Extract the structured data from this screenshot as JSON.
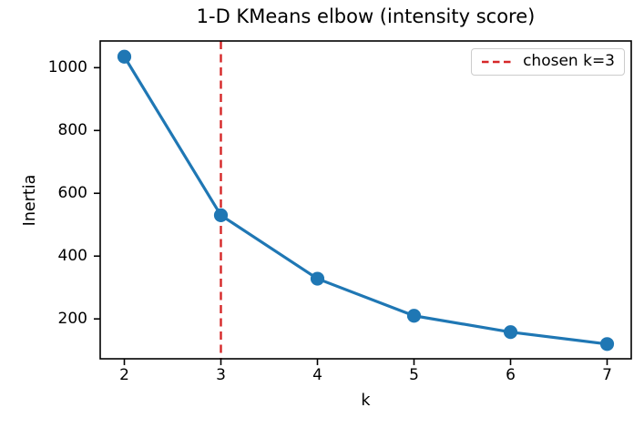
{
  "title": "1-D KMeans elbow (intensity score)",
  "colors": {
    "line": "#1f77b4",
    "vline": "#d62728",
    "spine": "#000000",
    "background": "#ffffff",
    "legend_border": "#cccccc"
  },
  "legend": {
    "label": "chosen k=3"
  },
  "chart_data": {
    "type": "line",
    "title": "1-D KMeans elbow (intensity score)",
    "xlabel": "k",
    "ylabel": "Inertia",
    "x": [
      2,
      3,
      4,
      5,
      6,
      7
    ],
    "series": [
      {
        "name": "inertia",
        "values": [
          1035,
          530,
          328,
          210,
          158,
          120
        ]
      }
    ],
    "x_ticks": [
      2,
      3,
      4,
      5,
      6,
      7
    ],
    "y_ticks": [
      200,
      400,
      600,
      800,
      1000
    ],
    "xlim": [
      1.75,
      7.25
    ],
    "ylim": [
      73,
      1085
    ],
    "grid": false,
    "legend_position": "upper right",
    "vline": {
      "x": 3,
      "label": "chosen k=3",
      "color": "#d62728",
      "style": "dashed"
    },
    "line_color": "#1f77b4",
    "marker": "o"
  }
}
